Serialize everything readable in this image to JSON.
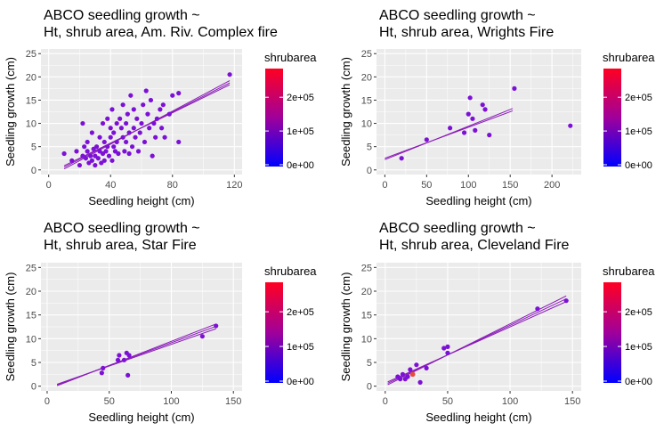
{
  "chart_data": [
    {
      "type": "scatter",
      "title_line1": "ABCO seedling growth ~",
      "title_line2": "Ht, shrub area, Am. Riv. Complex fire",
      "xlabel": "Seedling height (cm)",
      "ylabel": "Seedling growth (cm)",
      "xlim": [
        -5,
        125
      ],
      "ylim": [
        -1,
        26
      ],
      "xticks": [
        0,
        40,
        80,
        120
      ],
      "yticks": [
        0,
        5,
        10,
        15,
        20,
        25
      ],
      "legend_title": "shrubarea",
      "legend_labels": [
        "2e+05",
        "1e+05",
        "0e+00"
      ],
      "points": [
        [
          10,
          3.5
        ],
        [
          15,
          2
        ],
        [
          18,
          4
        ],
        [
          20,
          1
        ],
        [
          22,
          10
        ],
        [
          22,
          3
        ],
        [
          23,
          5
        ],
        [
          24,
          2.5
        ],
        [
          25,
          4
        ],
        [
          25,
          6
        ],
        [
          26,
          1.5
        ],
        [
          27,
          3
        ],
        [
          28,
          8
        ],
        [
          28,
          2
        ],
        [
          29,
          4.5
        ],
        [
          30,
          1
        ],
        [
          30,
          3
        ],
        [
          31,
          5
        ],
        [
          32,
          2.5
        ],
        [
          33,
          7
        ],
        [
          33,
          4
        ],
        [
          34,
          1.5
        ],
        [
          35,
          3.5
        ],
        [
          35,
          10
        ],
        [
          36,
          6
        ],
        [
          36,
          2
        ],
        [
          37,
          4
        ],
        [
          38,
          5
        ],
        [
          38,
          11
        ],
        [
          39,
          3
        ],
        [
          40,
          7
        ],
        [
          40,
          9
        ],
        [
          41,
          13
        ],
        [
          41,
          2
        ],
        [
          42,
          5
        ],
        [
          42,
          8
        ],
        [
          43,
          4
        ],
        [
          44,
          6
        ],
        [
          44,
          10
        ],
        [
          45,
          3.5
        ],
        [
          46,
          11
        ],
        [
          47,
          9
        ],
        [
          48,
          7
        ],
        [
          48,
          14
        ],
        [
          49,
          4
        ],
        [
          50,
          10
        ],
        [
          50,
          6
        ],
        [
          51,
          12
        ],
        [
          52,
          8
        ],
        [
          52,
          3.5
        ],
        [
          53,
          16
        ],
        [
          54,
          5
        ],
        [
          55,
          9
        ],
        [
          55,
          13
        ],
        [
          56,
          7
        ],
        [
          57,
          11
        ],
        [
          58,
          4
        ],
        [
          59,
          8
        ],
        [
          60,
          10
        ],
        [
          61,
          14
        ],
        [
          62,
          6
        ],
        [
          63,
          17
        ],
        [
          64,
          12
        ],
        [
          65,
          9
        ],
        [
          66,
          15
        ],
        [
          67,
          3
        ],
        [
          68,
          10
        ],
        [
          69,
          7
        ],
        [
          70,
          11
        ],
        [
          72,
          13
        ],
        [
          73,
          9
        ],
        [
          74,
          14
        ],
        [
          75,
          7
        ],
        [
          78,
          12
        ],
        [
          80,
          16
        ],
        [
          84,
          16.5
        ],
        [
          84,
          6
        ],
        [
          117,
          20.5
        ]
      ],
      "fit_lines": [
        [
          [
            10,
            0.2
          ],
          [
            117,
            19.2
          ]
        ],
        [
          [
            10,
            0.6
          ],
          [
            117,
            18.7
          ]
        ],
        [
          [
            10,
            0.9
          ],
          [
            117,
            18.3
          ]
        ]
      ]
    },
    {
      "type": "scatter",
      "title_line1": "ABCO seedling growth ~",
      "title_line2": "Ht, shrub area, Wrights Fire",
      "xlabel": "Seedling height (cm)",
      "ylabel": "Seedling growth (cm)",
      "xlim": [
        -10,
        235
      ],
      "ylim": [
        -1,
        26
      ],
      "xticks": [
        0,
        50,
        100,
        150,
        200
      ],
      "yticks": [
        0,
        5,
        10,
        15,
        20,
        25
      ],
      "legend_title": "shrubarea",
      "legend_labels": [
        "2e+05",
        "1e+05",
        "0e+00"
      ],
      "points": [
        [
          20,
          2.5
        ],
        [
          50,
          6.5
        ],
        [
          78,
          9
        ],
        [
          95,
          8
        ],
        [
          100,
          12
        ],
        [
          102,
          15.5
        ],
        [
          105,
          11
        ],
        [
          108,
          8.5
        ],
        [
          117,
          14
        ],
        [
          120,
          13
        ],
        [
          125,
          7.5
        ],
        [
          155,
          17.5
        ],
        [
          222,
          9.5
        ]
      ],
      "fit_lines": [
        [
          [
            0,
            2.2
          ],
          [
            153,
            13.2
          ]
        ],
        [
          [
            0,
            2.5
          ],
          [
            153,
            12.7
          ]
        ]
      ]
    },
    {
      "type": "scatter",
      "title_line1": "ABCO seedling growth ~",
      "title_line2": "Ht, shrub area, Star Fire",
      "xlabel": "Seedling height (cm)",
      "ylabel": "Seedling growth (cm)",
      "xlim": [
        -5,
        157
      ],
      "ylim": [
        -1,
        26
      ],
      "xticks": [
        0,
        50,
        100,
        150
      ],
      "yticks": [
        0,
        5,
        10,
        15,
        20,
        25
      ],
      "legend_title": "shrubarea",
      "legend_labels": [
        "2e+05",
        "1e+05",
        "0e+00"
      ],
      "points": [
        [
          44,
          2.8
        ],
        [
          45,
          3.8
        ],
        [
          57,
          5.5
        ],
        [
          58,
          6.5
        ],
        [
          62,
          5.5
        ],
        [
          64,
          7
        ],
        [
          65,
          2.3
        ],
        [
          66,
          6.5
        ],
        [
          125,
          10.5
        ],
        [
          136,
          12.7
        ]
      ],
      "fit_lines": [
        [
          [
            8,
            0.1
          ],
          [
            136,
            13.1
          ]
        ],
        [
          [
            8,
            0.3
          ],
          [
            136,
            12.6
          ]
        ],
        [
          [
            8,
            0.4
          ],
          [
            136,
            12.1
          ]
        ]
      ]
    },
    {
      "type": "scatter",
      "title_line1": "ABCO seedling growth ~",
      "title_line2": "Ht, shrub area, Cleveland Fire",
      "xlabel": "Seedling height (cm)",
      "ylabel": "Seedling growth (cm)",
      "xlim": [
        -7,
        157
      ],
      "ylim": [
        -1,
        26
      ],
      "xticks": [
        0,
        50,
        100,
        150
      ],
      "yticks": [
        0,
        5,
        10,
        15,
        20,
        25
      ],
      "legend_title": "shrubarea",
      "legend_labels": [
        "2e+05",
        "1e+05",
        "0e+00"
      ],
      "points": [
        [
          10,
          2
        ],
        [
          12,
          1.5
        ],
        [
          14,
          2.5
        ],
        [
          16,
          1.5
        ],
        [
          18,
          2
        ],
        [
          20,
          3.5
        ],
        [
          22,
          2.5
        ],
        [
          25,
          4.5
        ],
        [
          28,
          0.8
        ],
        [
          33,
          3.8
        ],
        [
          47,
          8
        ],
        [
          50,
          8.3
        ],
        [
          50,
          7
        ],
        [
          122,
          16.3
        ],
        [
          145,
          18
        ]
      ],
      "special_points": [
        [
          22,
          2.5
        ]
      ],
      "fit_lines": [
        [
          [
            2,
            0.3
          ],
          [
            145,
            19
          ]
        ],
        [
          [
            2,
            0.6
          ],
          [
            145,
            18.4
          ]
        ],
        [
          [
            2,
            0.9
          ],
          [
            145,
            17.8
          ]
        ]
      ]
    }
  ],
  "colors": {
    "panel_bg": "#ebebeb",
    "grid": "#ffffff",
    "point": "#7d10d6",
    "special_point": "#e84a3a",
    "line": "#8a1ab8",
    "gradient_top": "#ff0022",
    "gradient_bottom": "#0000ff"
  }
}
